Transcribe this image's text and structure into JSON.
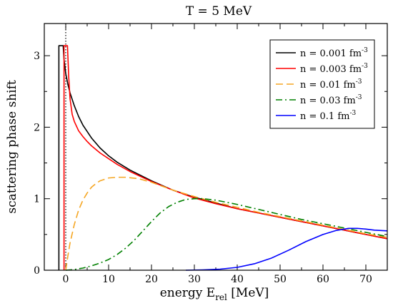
{
  "chart_data": {
    "type": "line",
    "title": "T = 5 MeV",
    "xlabel": {
      "main": "energy E",
      "sub": "rel",
      "unit": " [MeV]"
    },
    "ylabel": "scattering phase shift",
    "xlim": [
      -5,
      75
    ],
    "ylim": [
      0,
      3.45
    ],
    "x_ticks": [
      0,
      10,
      20,
      30,
      40,
      50,
      60,
      70
    ],
    "y_ticks": [
      0,
      1,
      2,
      3
    ],
    "legend_position": "top-right",
    "vertical_reference_x": 0,
    "series": [
      {
        "name": "n = 0.001 fm",
        "exponent": "-3",
        "color": "#000000",
        "dash": "solid",
        "x": [
          -1.6,
          -1.6,
          -0.6,
          -0.6,
          -0.4,
          0,
          0.5,
          1,
          2,
          3,
          4,
          5,
          6,
          8,
          10,
          12,
          15,
          20,
          25,
          30,
          35,
          40,
          45,
          50,
          55,
          60,
          65,
          70,
          75
        ],
        "y": [
          0,
          3.14,
          3.14,
          3.14,
          2.95,
          2.75,
          2.6,
          2.48,
          2.3,
          2.15,
          2.03,
          1.94,
          1.85,
          1.71,
          1.6,
          1.51,
          1.4,
          1.25,
          1.12,
          1.02,
          0.94,
          0.86,
          0.8,
          0.74,
          0.68,
          0.62,
          0.56,
          0.5,
          0.44
        ]
      },
      {
        "name": "n = 0.003 fm",
        "exponent": "-3",
        "color": "#ff0000",
        "dash": "solid",
        "x": [
          -0.4,
          -0.4,
          0.4,
          0.7,
          1,
          1.5,
          2,
          3,
          4,
          5,
          6,
          8,
          10,
          12,
          15,
          20,
          25,
          30,
          35,
          40,
          45,
          50,
          55,
          60,
          65,
          70,
          75
        ],
        "y": [
          0,
          3.14,
          3.14,
          2.7,
          2.4,
          2.18,
          2.08,
          1.95,
          1.87,
          1.8,
          1.74,
          1.64,
          1.56,
          1.48,
          1.38,
          1.24,
          1.12,
          1.01,
          0.93,
          0.86,
          0.8,
          0.74,
          0.68,
          0.62,
          0.56,
          0.5,
          0.44
        ]
      },
      {
        "name": "n = 0.01 fm",
        "exponent": "-3",
        "color": "#f5a623",
        "dash": "dashed",
        "x": [
          0,
          0.5,
          1,
          2,
          3,
          4,
          5,
          6,
          7,
          8,
          10,
          12,
          14,
          17,
          20,
          25,
          30,
          35,
          40,
          45,
          50,
          55,
          60,
          65,
          70,
          75
        ],
        "y": [
          0,
          0.2,
          0.38,
          0.64,
          0.84,
          0.98,
          1.08,
          1.16,
          1.21,
          1.25,
          1.29,
          1.3,
          1.3,
          1.28,
          1.23,
          1.12,
          1.03,
          0.95,
          0.88,
          0.81,
          0.75,
          0.69,
          0.63,
          0.57,
          0.51,
          0.46
        ]
      },
      {
        "name": "n = 0.03 fm",
        "exponent": "-3",
        "color": "#008000",
        "dash": "dashdot",
        "x": [
          0,
          2,
          4,
          6,
          8,
          10,
          12,
          14,
          16,
          18,
          20,
          22,
          24,
          26,
          28,
          30,
          32,
          35,
          40,
          45,
          50,
          55,
          60,
          65,
          70,
          75
        ],
        "y": [
          0,
          0.01,
          0.03,
          0.06,
          0.1,
          0.15,
          0.22,
          0.31,
          0.42,
          0.55,
          0.68,
          0.8,
          0.89,
          0.95,
          0.99,
          1.0,
          1.0,
          0.98,
          0.92,
          0.85,
          0.78,
          0.71,
          0.65,
          0.59,
          0.53,
          0.47
        ]
      },
      {
        "name": "n = 0.1 fm",
        "exponent": "-3",
        "color": "#0000ff",
        "dash": "solid",
        "x": [
          28,
          32,
          36,
          40,
          44,
          48,
          52,
          56,
          60,
          63,
          66,
          68,
          70,
          72,
          75
        ],
        "y": [
          0,
          0.005,
          0.015,
          0.04,
          0.09,
          0.17,
          0.28,
          0.4,
          0.5,
          0.555,
          0.585,
          0.585,
          0.575,
          0.56,
          0.55
        ]
      }
    ]
  }
}
